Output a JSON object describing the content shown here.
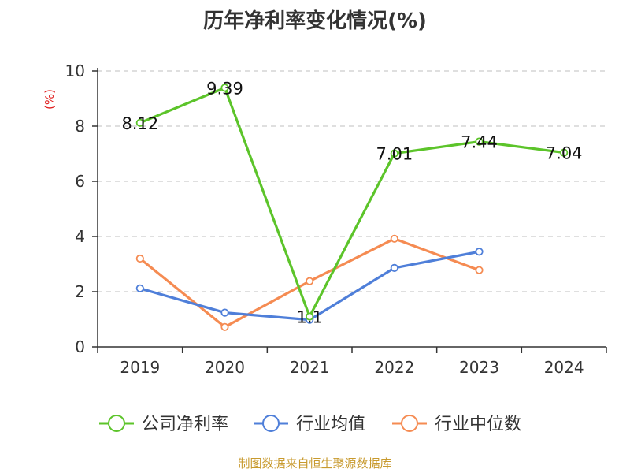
{
  "title": "历年净利率变化情况(%)",
  "source": "制图数据来自恒生聚源数据库",
  "colors": {
    "axis": "#333333",
    "grid": "#cccccc",
    "ylabel": "#e02020"
  },
  "chart_data": {
    "type": "line",
    "title": "历年净利率变化情况(%)",
    "ylabel": "(%)",
    "categories": [
      "2019",
      "2020",
      "2021",
      "2022",
      "2023",
      "2024"
    ],
    "ylim": [
      0,
      10
    ],
    "yticks": [
      "0",
      "2",
      "4",
      "6",
      "8",
      "10"
    ],
    "grid": "horizontal-dashed",
    "legend_position": "bottom",
    "series": [
      {
        "name": "公司净利率",
        "color": "#5cc42a",
        "values": [
          8.12,
          9.39,
          1.1,
          7.01,
          7.44,
          7.04
        ],
        "labels": [
          "8.12",
          "9.39",
          "1.1",
          "7.01",
          "7.44",
          "7.04"
        ]
      },
      {
        "name": "行业均值",
        "color": "#4f7fd9",
        "values": [
          2.12,
          1.24,
          0.98,
          2.86,
          3.45,
          null
        ]
      },
      {
        "name": "行业中位数",
        "color": "#f58b52",
        "values": [
          3.2,
          0.72,
          2.38,
          3.92,
          2.78,
          null
        ]
      }
    ]
  }
}
